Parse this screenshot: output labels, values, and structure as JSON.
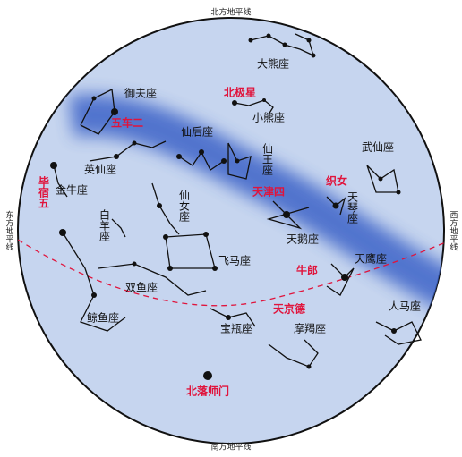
{
  "horizons": {
    "north": "北方地平线",
    "south": "南方地平线",
    "east": "东方地平线",
    "west": "西方地平线"
  },
  "constellations": [
    "大熊座",
    "小熊座",
    "御夫座",
    "仙后座",
    "仙王座",
    "武仙座",
    "英仙座",
    "金牛座",
    "天琴座",
    "仙女座",
    "白羊座",
    "天鹅座",
    "飞马座",
    "天鹰座",
    "双鱼座",
    "鲸鱼座",
    "宝瓶座",
    "摩羯座",
    "人马座"
  ],
  "stars": [
    "北极星",
    "五车二",
    "毕宿五",
    "天津四",
    "织女",
    "牛郎",
    "天京德",
    "北落师门"
  ]
}
